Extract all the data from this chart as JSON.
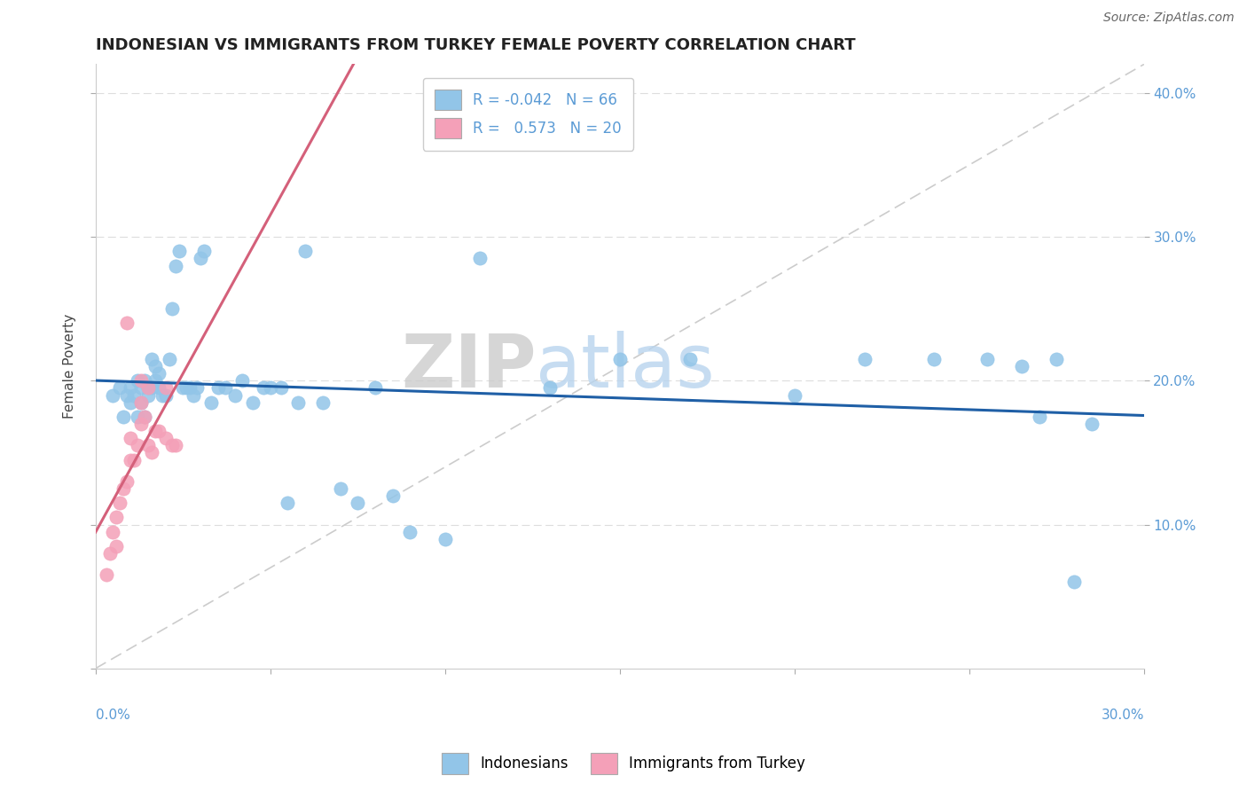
{
  "title": "INDONESIAN VS IMMIGRANTS FROM TURKEY FEMALE POVERTY CORRELATION CHART",
  "source": "Source: ZipAtlas.com",
  "ylabel": "Female Poverty",
  "watermark_zip": "ZIP",
  "watermark_atlas": "atlas",
  "xlim": [
    0.0,
    0.3
  ],
  "ylim": [
    0.0,
    0.42
  ],
  "blue_color": "#92C5E8",
  "pink_color": "#F4A0B8",
  "blue_line_color": "#1F5FA6",
  "pink_line_color": "#D4607A",
  "dashed_line_color": "#CCCCCC",
  "grid_color": "#DDDDDD",
  "tick_color": "#5B9BD5",
  "blue_x": [
    0.005,
    0.007,
    0.008,
    0.009,
    0.01,
    0.01,
    0.011,
    0.012,
    0.012,
    0.013,
    0.013,
    0.014,
    0.014,
    0.015,
    0.015,
    0.016,
    0.016,
    0.017,
    0.017,
    0.018,
    0.018,
    0.019,
    0.02,
    0.021,
    0.022,
    0.023,
    0.024,
    0.025,
    0.026,
    0.027,
    0.028,
    0.029,
    0.03,
    0.031,
    0.033,
    0.035,
    0.037,
    0.04,
    0.042,
    0.045,
    0.048,
    0.05,
    0.053,
    0.055,
    0.058,
    0.06,
    0.065,
    0.07,
    0.075,
    0.08,
    0.085,
    0.09,
    0.1,
    0.11,
    0.13,
    0.15,
    0.17,
    0.2,
    0.22,
    0.24,
    0.255,
    0.265,
    0.27,
    0.275,
    0.28,
    0.285
  ],
  "blue_y": [
    0.19,
    0.195,
    0.175,
    0.19,
    0.195,
    0.185,
    0.19,
    0.175,
    0.2,
    0.195,
    0.185,
    0.175,
    0.2,
    0.195,
    0.19,
    0.215,
    0.195,
    0.2,
    0.21,
    0.195,
    0.205,
    0.19,
    0.19,
    0.215,
    0.25,
    0.28,
    0.29,
    0.195,
    0.195,
    0.195,
    0.19,
    0.195,
    0.285,
    0.29,
    0.185,
    0.195,
    0.195,
    0.19,
    0.2,
    0.185,
    0.195,
    0.195,
    0.195,
    0.115,
    0.185,
    0.29,
    0.185,
    0.125,
    0.115,
    0.195,
    0.12,
    0.095,
    0.09,
    0.285,
    0.195,
    0.215,
    0.215,
    0.19,
    0.215,
    0.215,
    0.215,
    0.21,
    0.175,
    0.215,
    0.06,
    0.17
  ],
  "pink_x": [
    0.003,
    0.004,
    0.005,
    0.006,
    0.006,
    0.007,
    0.008,
    0.009,
    0.01,
    0.01,
    0.011,
    0.012,
    0.013,
    0.013,
    0.014,
    0.015,
    0.016,
    0.017,
    0.018,
    0.02
  ],
  "pink_y": [
    0.065,
    0.08,
    0.095,
    0.085,
    0.105,
    0.115,
    0.125,
    0.13,
    0.145,
    0.16,
    0.145,
    0.155,
    0.17,
    0.185,
    0.175,
    0.155,
    0.15,
    0.165,
    0.165,
    0.195
  ],
  "pink_x2": [
    0.009,
    0.013,
    0.015,
    0.02,
    0.022,
    0.023
  ],
  "pink_y2": [
    0.24,
    0.2,
    0.195,
    0.16,
    0.155,
    0.155
  ]
}
